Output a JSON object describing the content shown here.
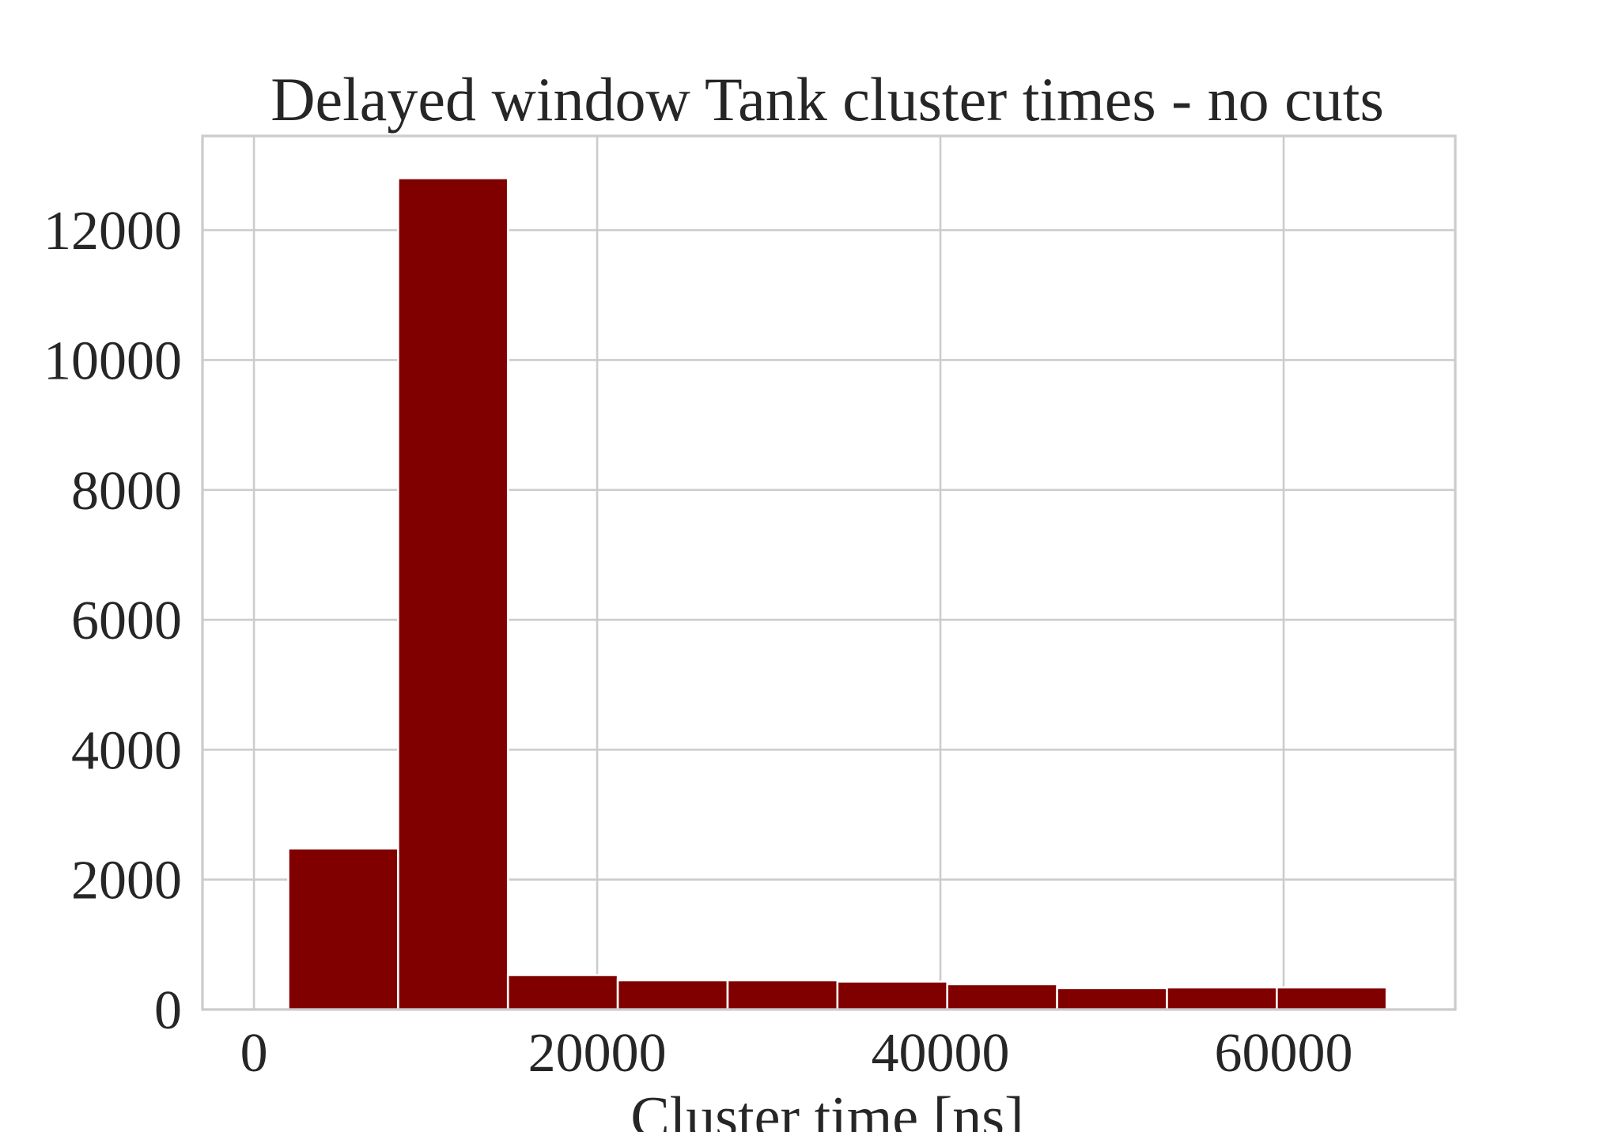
{
  "chart_data": {
    "type": "bar",
    "title": "Delayed window Tank cluster times - no cuts",
    "xlabel": "Cluster time [ns]",
    "ylabel": "",
    "xlim": [
      -3000,
      70000
    ],
    "ylim": [
      0,
      13450
    ],
    "x_ticks": [
      0,
      20000,
      40000,
      60000
    ],
    "y_ticks": [
      0,
      2000,
      4000,
      6000,
      8000,
      10000,
      12000
    ],
    "grid": true,
    "bar_color": "#800000",
    "bins": [
      {
        "x0": 2000,
        "x1": 8400,
        "value": 2480
      },
      {
        "x0": 8400,
        "x1": 14800,
        "value": 12800
      },
      {
        "x0": 14800,
        "x1": 21200,
        "value": 530
      },
      {
        "x0": 21200,
        "x1": 27600,
        "value": 450
      },
      {
        "x0": 27600,
        "x1": 34000,
        "value": 450
      },
      {
        "x0": 34000,
        "x1": 40400,
        "value": 430
      },
      {
        "x0": 40400,
        "x1": 46800,
        "value": 390
      },
      {
        "x0": 46800,
        "x1": 53200,
        "value": 330
      },
      {
        "x0": 53200,
        "x1": 59600,
        "value": 340
      },
      {
        "x0": 59600,
        "x1": 66000,
        "value": 340
      }
    ]
  }
}
